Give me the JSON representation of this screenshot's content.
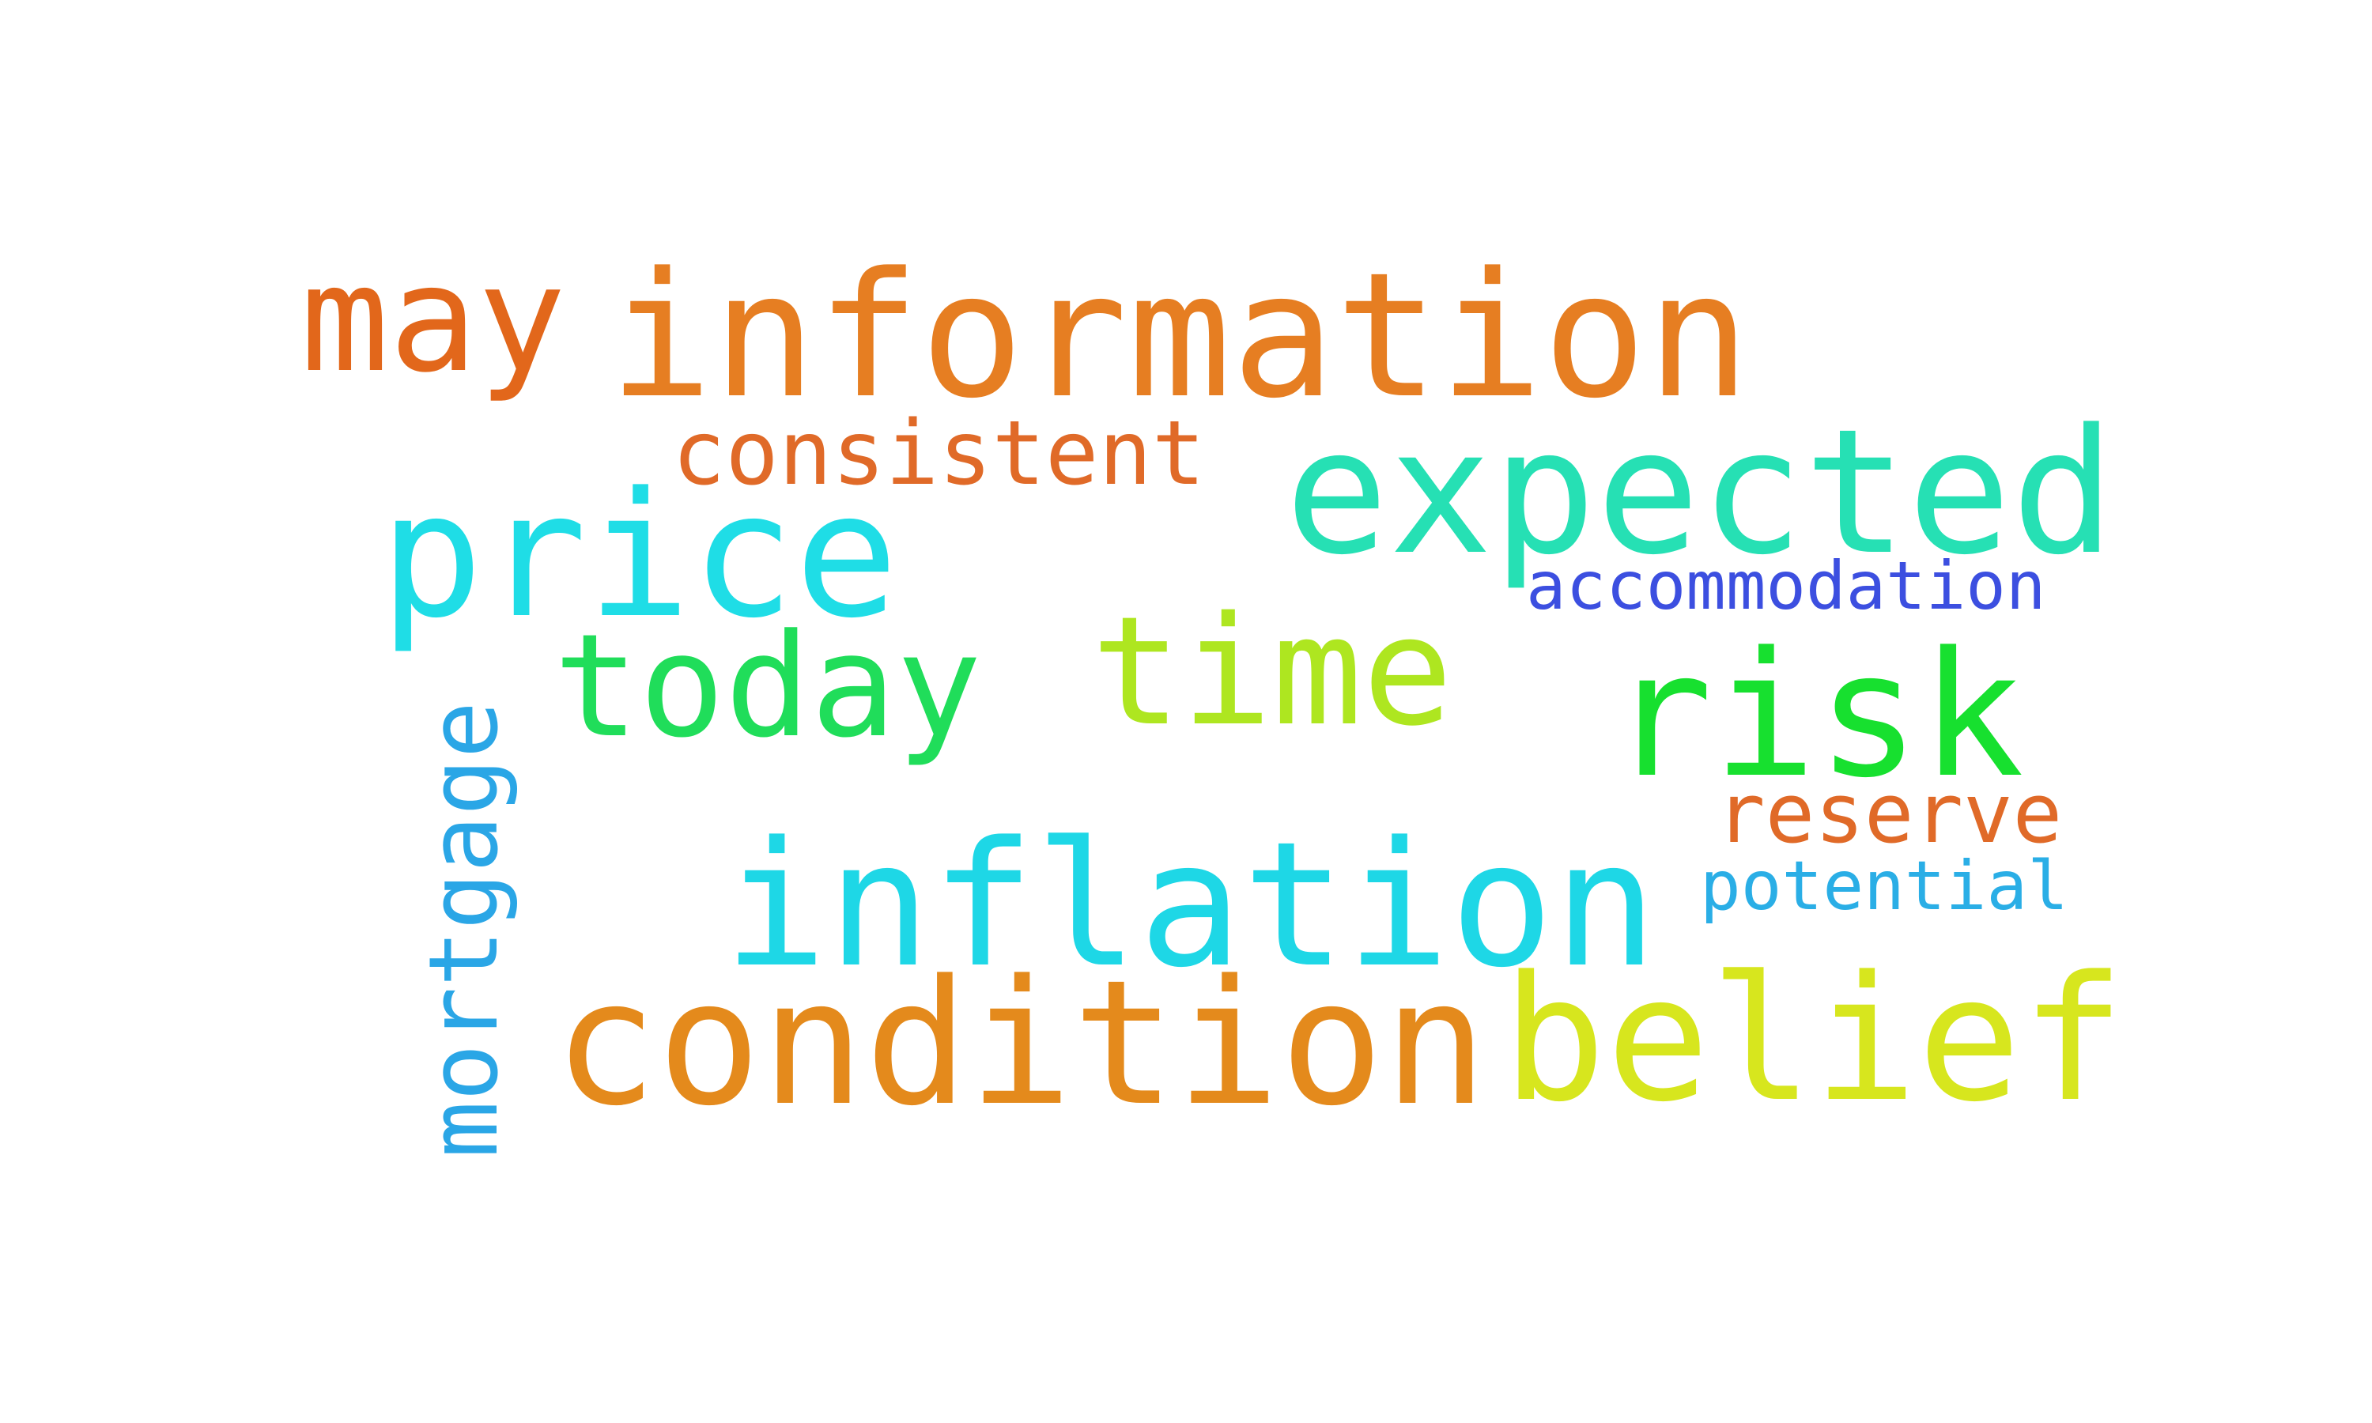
{
  "words": [
    {
      "text": "information",
      "color": "#e67e22"
    },
    {
      "text": "may",
      "color": "#e2671b"
    },
    {
      "text": "consistent",
      "color": "#e06a28"
    },
    {
      "text": "expected",
      "color": "#26e0b4"
    },
    {
      "text": "price",
      "color": "#1fdde6"
    },
    {
      "text": "accommodation",
      "color": "#3c4fe0"
    },
    {
      "text": "today",
      "color": "#20dd5a"
    },
    {
      "text": "time",
      "color": "#aee620"
    },
    {
      "text": "risk",
      "color": "#17e02f"
    },
    {
      "text": "mortgage",
      "color": "#2aa6e6"
    },
    {
      "text": "reserve",
      "color": "#e06a28"
    },
    {
      "text": "potential",
      "color": "#2aaee6"
    },
    {
      "text": "inflation",
      "color": "#1ed7e6"
    },
    {
      "text": "condition",
      "color": "#e48a1c"
    },
    {
      "text": "belief",
      "color": "#d7e61e"
    }
  ]
}
